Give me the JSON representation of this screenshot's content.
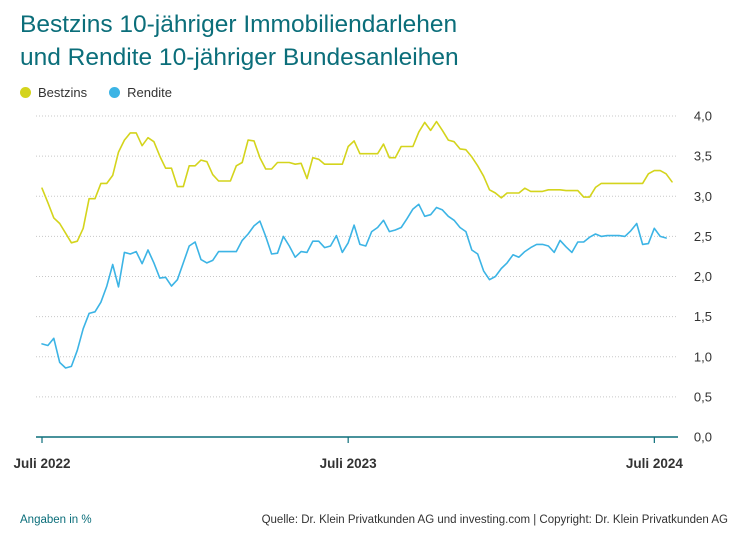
{
  "title": {
    "line1": "Bestzins 10-jähriger Immobiliendarlehen",
    "line2": "und Rendite 10-jähriger Bundesanleihen"
  },
  "footer": {
    "note": "Angaben in %",
    "source": "Quelle: Dr. Klein Privatkunden AG und investing.com | Copyright: Dr. Klein Privatkunden AG"
  },
  "colors": {
    "title": "#0b6e7a",
    "bestzins": "#d4d41c",
    "rendite": "#3cb4e5",
    "axis": "#0b6e7a",
    "grid": "#c8c8c8"
  },
  "chart_data": {
    "type": "line",
    "ylim": [
      0,
      4
    ],
    "yticks": [
      "4,0",
      "3,5",
      "3,0",
      "2,5",
      "2,0",
      "1,5",
      "1,0",
      "0,5",
      "0,0"
    ],
    "xticks": [
      {
        "label": "Juli 2022",
        "index": 0
      },
      {
        "label": "Juli 2023",
        "index": 52
      },
      {
        "label": "Juli 2024",
        "index": 104
      }
    ],
    "grid": "horizontal-dotted",
    "legend_position": "top-left",
    "series": [
      {
        "name": "Bestzins",
        "color": "#d4d41c",
        "values": [
          3.1,
          2.92,
          2.73,
          2.66,
          2.54,
          2.42,
          2.44,
          2.6,
          2.97,
          2.97,
          3.16,
          3.16,
          3.26,
          3.55,
          3.7,
          3.79,
          3.79,
          3.63,
          3.73,
          3.68,
          3.5,
          3.35,
          3.35,
          3.12,
          3.12,
          3.38,
          3.38,
          3.45,
          3.43,
          3.27,
          3.19,
          3.19,
          3.19,
          3.38,
          3.42,
          3.7,
          3.69,
          3.48,
          3.34,
          3.34,
          3.42,
          3.42,
          3.42,
          3.4,
          3.41,
          3.22,
          3.48,
          3.46,
          3.4,
          3.4,
          3.4,
          3.4,
          3.62,
          3.69,
          3.53,
          3.53,
          3.53,
          3.53,
          3.65,
          3.48,
          3.48,
          3.62,
          3.62,
          3.62,
          3.8,
          3.92,
          3.82,
          3.93,
          3.82,
          3.7,
          3.68,
          3.59,
          3.58,
          3.49,
          3.38,
          3.25,
          3.08,
          3.04,
          2.98,
          3.04,
          3.04,
          3.04,
          3.1,
          3.06,
          3.06,
          3.06,
          3.08,
          3.08,
          3.08,
          3.07,
          3.07,
          3.07,
          2.99,
          2.99,
          3.11,
          3.16,
          3.16,
          3.16,
          3.16,
          3.16,
          3.16,
          3.16,
          3.16,
          3.28,
          3.32,
          3.32,
          3.28,
          3.18
        ]
      },
      {
        "name": "Rendite",
        "color": "#3cb4e5",
        "values": [
          1.16,
          1.14,
          1.23,
          0.93,
          0.86,
          0.88,
          1.08,
          1.35,
          1.54,
          1.56,
          1.68,
          1.88,
          2.15,
          1.87,
          2.3,
          2.28,
          2.31,
          2.16,
          2.33,
          2.17,
          1.98,
          1.99,
          1.88,
          1.96,
          2.17,
          2.38,
          2.43,
          2.21,
          2.17,
          2.2,
          2.31,
          2.31,
          2.31,
          2.31,
          2.45,
          2.53,
          2.63,
          2.69,
          2.5,
          2.28,
          2.29,
          2.5,
          2.38,
          2.24,
          2.31,
          2.3,
          2.44,
          2.44,
          2.36,
          2.38,
          2.51,
          2.3,
          2.42,
          2.64,
          2.4,
          2.38,
          2.56,
          2.61,
          2.7,
          2.56,
          2.58,
          2.61,
          2.72,
          2.84,
          2.9,
          2.75,
          2.77,
          2.86,
          2.83,
          2.75,
          2.7,
          2.61,
          2.56,
          2.33,
          2.28,
          2.07,
          1.96,
          2.0,
          2.1,
          2.17,
          2.27,
          2.24,
          2.31,
          2.36,
          2.4,
          2.4,
          2.38,
          2.3,
          2.45,
          2.37,
          2.3,
          2.43,
          2.43,
          2.49,
          2.53,
          2.5,
          2.51,
          2.51,
          2.51,
          2.5,
          2.57,
          2.66,
          2.4,
          2.41,
          2.6,
          2.5,
          2.48
        ]
      }
    ]
  }
}
